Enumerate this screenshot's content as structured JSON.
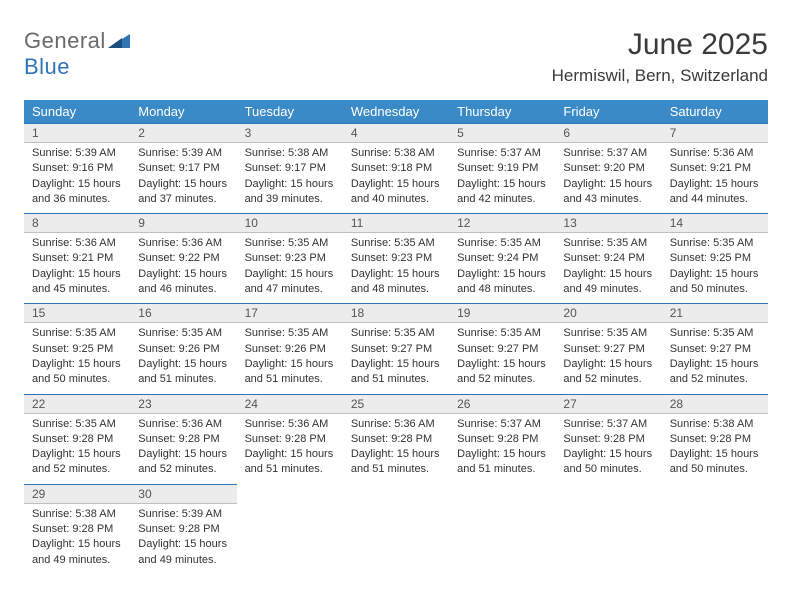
{
  "brand": {
    "text1": "General",
    "text2": "Blue",
    "color_general": "#6a6a6a",
    "color_blue": "#2f74b5"
  },
  "header": {
    "month_title": "June 2025",
    "location": "Hermiswil, Bern, Switzerland"
  },
  "colors": {
    "header_bg": "#3a8ac8",
    "header_text": "#ffffff",
    "daynum_bg": "#ececec",
    "daynum_top_border": "#2f74b5",
    "daynum_bottom_border": "#bfbfbf",
    "text": "#333333"
  },
  "weekdays": [
    "Sunday",
    "Monday",
    "Tuesday",
    "Wednesday",
    "Thursday",
    "Friday",
    "Saturday"
  ],
  "weeks": [
    [
      {
        "day": "1",
        "sunrise": "Sunrise: 5:39 AM",
        "sunset": "Sunset: 9:16 PM",
        "dl1": "Daylight: 15 hours",
        "dl2": "and 36 minutes."
      },
      {
        "day": "2",
        "sunrise": "Sunrise: 5:39 AM",
        "sunset": "Sunset: 9:17 PM",
        "dl1": "Daylight: 15 hours",
        "dl2": "and 37 minutes."
      },
      {
        "day": "3",
        "sunrise": "Sunrise: 5:38 AM",
        "sunset": "Sunset: 9:17 PM",
        "dl1": "Daylight: 15 hours",
        "dl2": "and 39 minutes."
      },
      {
        "day": "4",
        "sunrise": "Sunrise: 5:38 AM",
        "sunset": "Sunset: 9:18 PM",
        "dl1": "Daylight: 15 hours",
        "dl2": "and 40 minutes."
      },
      {
        "day": "5",
        "sunrise": "Sunrise: 5:37 AM",
        "sunset": "Sunset: 9:19 PM",
        "dl1": "Daylight: 15 hours",
        "dl2": "and 42 minutes."
      },
      {
        "day": "6",
        "sunrise": "Sunrise: 5:37 AM",
        "sunset": "Sunset: 9:20 PM",
        "dl1": "Daylight: 15 hours",
        "dl2": "and 43 minutes."
      },
      {
        "day": "7",
        "sunrise": "Sunrise: 5:36 AM",
        "sunset": "Sunset: 9:21 PM",
        "dl1": "Daylight: 15 hours",
        "dl2": "and 44 minutes."
      }
    ],
    [
      {
        "day": "8",
        "sunrise": "Sunrise: 5:36 AM",
        "sunset": "Sunset: 9:21 PM",
        "dl1": "Daylight: 15 hours",
        "dl2": "and 45 minutes."
      },
      {
        "day": "9",
        "sunrise": "Sunrise: 5:36 AM",
        "sunset": "Sunset: 9:22 PM",
        "dl1": "Daylight: 15 hours",
        "dl2": "and 46 minutes."
      },
      {
        "day": "10",
        "sunrise": "Sunrise: 5:35 AM",
        "sunset": "Sunset: 9:23 PM",
        "dl1": "Daylight: 15 hours",
        "dl2": "and 47 minutes."
      },
      {
        "day": "11",
        "sunrise": "Sunrise: 5:35 AM",
        "sunset": "Sunset: 9:23 PM",
        "dl1": "Daylight: 15 hours",
        "dl2": "and 48 minutes."
      },
      {
        "day": "12",
        "sunrise": "Sunrise: 5:35 AM",
        "sunset": "Sunset: 9:24 PM",
        "dl1": "Daylight: 15 hours",
        "dl2": "and 48 minutes."
      },
      {
        "day": "13",
        "sunrise": "Sunrise: 5:35 AM",
        "sunset": "Sunset: 9:24 PM",
        "dl1": "Daylight: 15 hours",
        "dl2": "and 49 minutes."
      },
      {
        "day": "14",
        "sunrise": "Sunrise: 5:35 AM",
        "sunset": "Sunset: 9:25 PM",
        "dl1": "Daylight: 15 hours",
        "dl2": "and 50 minutes."
      }
    ],
    [
      {
        "day": "15",
        "sunrise": "Sunrise: 5:35 AM",
        "sunset": "Sunset: 9:25 PM",
        "dl1": "Daylight: 15 hours",
        "dl2": "and 50 minutes."
      },
      {
        "day": "16",
        "sunrise": "Sunrise: 5:35 AM",
        "sunset": "Sunset: 9:26 PM",
        "dl1": "Daylight: 15 hours",
        "dl2": "and 51 minutes."
      },
      {
        "day": "17",
        "sunrise": "Sunrise: 5:35 AM",
        "sunset": "Sunset: 9:26 PM",
        "dl1": "Daylight: 15 hours",
        "dl2": "and 51 minutes."
      },
      {
        "day": "18",
        "sunrise": "Sunrise: 5:35 AM",
        "sunset": "Sunset: 9:27 PM",
        "dl1": "Daylight: 15 hours",
        "dl2": "and 51 minutes."
      },
      {
        "day": "19",
        "sunrise": "Sunrise: 5:35 AM",
        "sunset": "Sunset: 9:27 PM",
        "dl1": "Daylight: 15 hours",
        "dl2": "and 52 minutes."
      },
      {
        "day": "20",
        "sunrise": "Sunrise: 5:35 AM",
        "sunset": "Sunset: 9:27 PM",
        "dl1": "Daylight: 15 hours",
        "dl2": "and 52 minutes."
      },
      {
        "day": "21",
        "sunrise": "Sunrise: 5:35 AM",
        "sunset": "Sunset: 9:27 PM",
        "dl1": "Daylight: 15 hours",
        "dl2": "and 52 minutes."
      }
    ],
    [
      {
        "day": "22",
        "sunrise": "Sunrise: 5:35 AM",
        "sunset": "Sunset: 9:28 PM",
        "dl1": "Daylight: 15 hours",
        "dl2": "and 52 minutes."
      },
      {
        "day": "23",
        "sunrise": "Sunrise: 5:36 AM",
        "sunset": "Sunset: 9:28 PM",
        "dl1": "Daylight: 15 hours",
        "dl2": "and 52 minutes."
      },
      {
        "day": "24",
        "sunrise": "Sunrise: 5:36 AM",
        "sunset": "Sunset: 9:28 PM",
        "dl1": "Daylight: 15 hours",
        "dl2": "and 51 minutes."
      },
      {
        "day": "25",
        "sunrise": "Sunrise: 5:36 AM",
        "sunset": "Sunset: 9:28 PM",
        "dl1": "Daylight: 15 hours",
        "dl2": "and 51 minutes."
      },
      {
        "day": "26",
        "sunrise": "Sunrise: 5:37 AM",
        "sunset": "Sunset: 9:28 PM",
        "dl1": "Daylight: 15 hours",
        "dl2": "and 51 minutes."
      },
      {
        "day": "27",
        "sunrise": "Sunrise: 5:37 AM",
        "sunset": "Sunset: 9:28 PM",
        "dl1": "Daylight: 15 hours",
        "dl2": "and 50 minutes."
      },
      {
        "day": "28",
        "sunrise": "Sunrise: 5:38 AM",
        "sunset": "Sunset: 9:28 PM",
        "dl1": "Daylight: 15 hours",
        "dl2": "and 50 minutes."
      }
    ],
    [
      {
        "day": "29",
        "sunrise": "Sunrise: 5:38 AM",
        "sunset": "Sunset: 9:28 PM",
        "dl1": "Daylight: 15 hours",
        "dl2": "and 49 minutes."
      },
      {
        "day": "30",
        "sunrise": "Sunrise: 5:39 AM",
        "sunset": "Sunset: 9:28 PM",
        "dl1": "Daylight: 15 hours",
        "dl2": "and 49 minutes."
      },
      null,
      null,
      null,
      null,
      null
    ]
  ]
}
